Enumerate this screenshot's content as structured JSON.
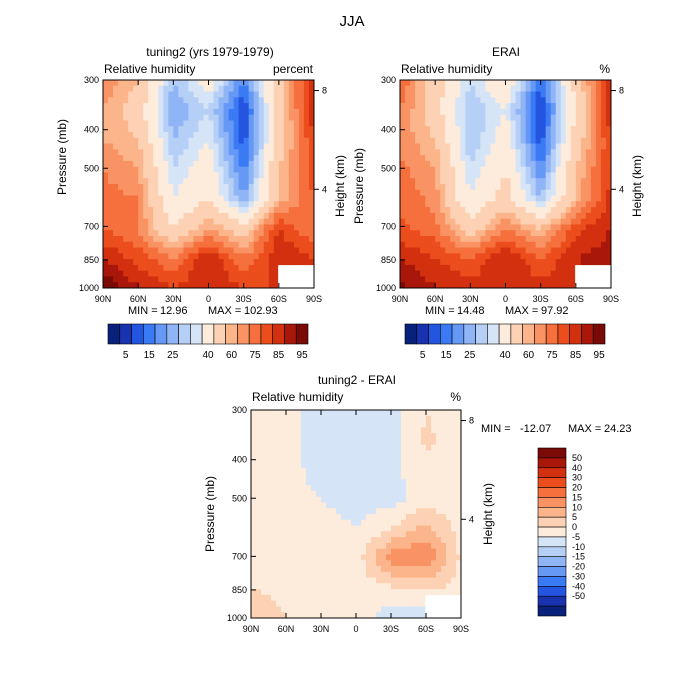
{
  "figure_title": "JJA",
  "colors": {
    "rh_scale": [
      "#08217a",
      "#1832b0",
      "#2455e0",
      "#3b7af5",
      "#6699f6",
      "#8fb5f6",
      "#b6cff6",
      "#d6e4f7",
      "#fdecdc",
      "#fdd2b4",
      "#fcb48a",
      "#f99364",
      "#f5703d",
      "#ec4d1c",
      "#d2300e",
      "#a8170a",
      "#7a0a05"
    ],
    "diff_scale": [
      "#08217a",
      "#1832b0",
      "#2455e0",
      "#3b7af5",
      "#6699f6",
      "#8fb5f6",
      "#b6cff6",
      "#d6e4f7",
      "#fdecdc",
      "#fdd2b4",
      "#fcb48a",
      "#f99364",
      "#f5703d",
      "#ec4d1c",
      "#d2300e",
      "#a8170a",
      "#7a0a05"
    ]
  },
  "chart_data": [
    {
      "type": "heatmap",
      "title": "tuning2 (yrs 1979-1979)",
      "subtitle_left": "Relative humidity",
      "subtitle_right": "percent",
      "ylabel": "Pressure (mb)",
      "ylabel_right": "Height (km)",
      "x_ticks": [
        "90N",
        "60N",
        "30N",
        "0",
        "30S",
        "60S",
        "90S"
      ],
      "y_ticks": [
        "300",
        "400",
        "500",
        "700",
        "850",
        "1000"
      ],
      "height_ticks": [
        "8",
        "4"
      ],
      "min_label": "MIN =",
      "min": "12.96",
      "max_label": "MAX =",
      "max": "102.93",
      "colorbar_labels": [
        "5",
        "15",
        "25",
        "40",
        "60",
        "75",
        "85",
        "95"
      ],
      "x": [
        -90,
        -60,
        -30,
        0,
        30,
        60,
        90
      ],
      "y": [
        300,
        400,
        500,
        600,
        700,
        850,
        925,
        1000
      ],
      "z": [
        [
          70,
          60,
          30,
          45,
          20,
          55,
          85
        ],
        [
          65,
          55,
          25,
          35,
          10,
          55,
          85
        ],
        [
          65,
          60,
          30,
          40,
          12,
          55,
          80
        ],
        [
          70,
          65,
          35,
          45,
          18,
          60,
          78
        ],
        [
          72,
          70,
          40,
          50,
          25,
          62,
          75
        ],
        [
          75,
          70,
          50,
          65,
          55,
          80,
          70
        ],
        [
          85,
          78,
          70,
          85,
          70,
          85,
          80
        ],
        [
          95,
          85,
          80,
          85,
          80,
          80,
          80
        ]
      ]
    },
    {
      "type": "heatmap",
      "title": "ERAI",
      "subtitle_left": "Relative humidity",
      "subtitle_right": "%",
      "ylabel": "Pressure (mb)",
      "ylabel_right": "Height (km)",
      "x_ticks": [
        "90N",
        "60N",
        "30N",
        "0",
        "30S",
        "60S",
        "90S"
      ],
      "y_ticks": [
        "300",
        "400",
        "500",
        "700",
        "850",
        "1000"
      ],
      "height_ticks": [
        "8",
        "4"
      ],
      "min_label": "MIN =",
      "min": "14.48",
      "max_label": "MAX =",
      "max": "97.92",
      "colorbar_labels": [
        "5",
        "15",
        "25",
        "40",
        "60",
        "75",
        "85",
        "95"
      ],
      "x": [
        -90,
        -60,
        -30,
        0,
        30,
        60,
        90
      ],
      "y": [
        300,
        400,
        500,
        600,
        700,
        850,
        925,
        1000
      ],
      "z": [
        [
          75,
          55,
          35,
          50,
          15,
          55,
          85
        ],
        [
          70,
          55,
          30,
          40,
          10,
          50,
          85
        ],
        [
          68,
          60,
          30,
          45,
          12,
          55,
          80
        ],
        [
          72,
          65,
          35,
          50,
          20,
          60,
          80
        ],
        [
          74,
          68,
          40,
          55,
          30,
          62,
          82
        ],
        [
          76,
          72,
          55,
          70,
          60,
          78,
          85
        ],
        [
          85,
          80,
          75,
          85,
          75,
          85,
          88
        ],
        [
          92,
          85,
          82,
          85,
          82,
          82,
          90
        ]
      ]
    },
    {
      "type": "heatmap",
      "title": "tuning2 - ERAI",
      "subtitle_left": "Relative humidity",
      "subtitle_right": "%",
      "ylabel": "Pressure (mb)",
      "ylabel_right": "Height (km)",
      "x_ticks": [
        "90N",
        "60N",
        "30N",
        "0",
        "30S",
        "60S",
        "90S"
      ],
      "y_ticks": [
        "300",
        "400",
        "500",
        "700",
        "850",
        "1000"
      ],
      "height_ticks": [
        "8",
        "4"
      ],
      "min_label": "MIN =",
      "min": "-12.07",
      "max_label": "MAX =",
      "max": "24.23",
      "colorbar_labels": [
        "50",
        "40",
        "30",
        "20",
        "15",
        "10",
        "5",
        "0",
        "-5",
        "-10",
        "-15",
        "-20",
        "-30",
        "-40",
        "-50"
      ],
      "x": [
        -90,
        -60,
        -30,
        0,
        30,
        60,
        90
      ],
      "y": [
        300,
        400,
        500,
        600,
        700,
        850,
        925,
        1000
      ],
      "z": [
        [
          4,
          2,
          -3,
          -4,
          -2,
          5,
          2
        ],
        [
          3,
          2,
          -3,
          -4,
          -2,
          6,
          2
        ],
        [
          3,
          2,
          -2,
          -2,
          -2,
          4,
          2
        ],
        [
          2,
          2,
          0,
          -2,
          -2,
          3,
          1
        ],
        [
          2,
          2,
          2,
          0,
          5,
          12,
          3
        ],
        [
          3,
          3,
          3,
          2,
          18,
          20,
          4
        ],
        [
          5,
          4,
          3,
          2,
          4,
          6,
          3
        ],
        [
          8,
          5,
          3,
          3,
          -3,
          -3,
          -1
        ]
      ]
    }
  ]
}
